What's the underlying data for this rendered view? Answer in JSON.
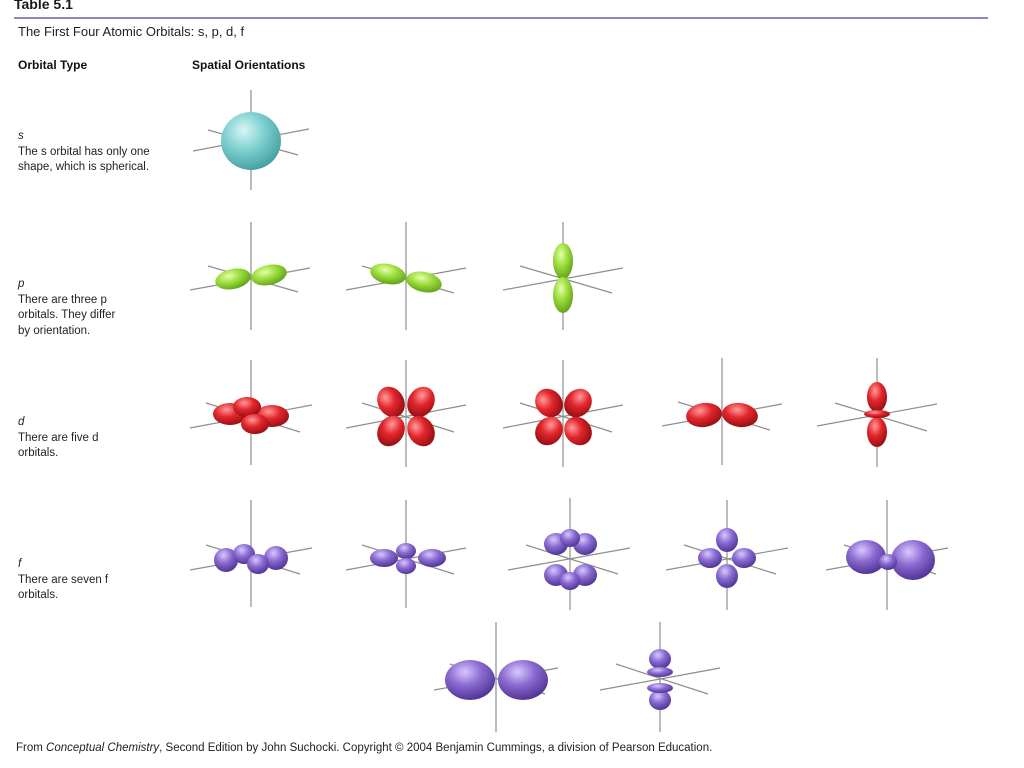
{
  "table_label": "Table 5.1",
  "table_title": "The First Four Atomic Orbitals: s, p, d, f",
  "headers": {
    "orbital_type": "Orbital Type",
    "spatial_orientations": "Spatial Orientations"
  },
  "rows": [
    {
      "letter": "s",
      "description": "The s orbital has only one shape, which is spherical.",
      "count": 1,
      "color": "#6cc6c6"
    },
    {
      "letter": "p",
      "description": "There are three p orbitals. They differ by orientation.",
      "count": 3,
      "color": "#8fd13a"
    },
    {
      "letter": "d",
      "description": "There are five d orbitals.",
      "count": 5,
      "color": "#e0242c"
    },
    {
      "letter": "f",
      "description": "There are seven f orbitals.",
      "count": 7,
      "color": "#7a5cc4"
    }
  ],
  "footer": {
    "prefix": "From ",
    "book": "Conceptual Chemistry",
    "suffix": ", Second Edition by John Suchocki. Copyright © 2004 Benjamin Cummings, a division of Pearson Education."
  }
}
